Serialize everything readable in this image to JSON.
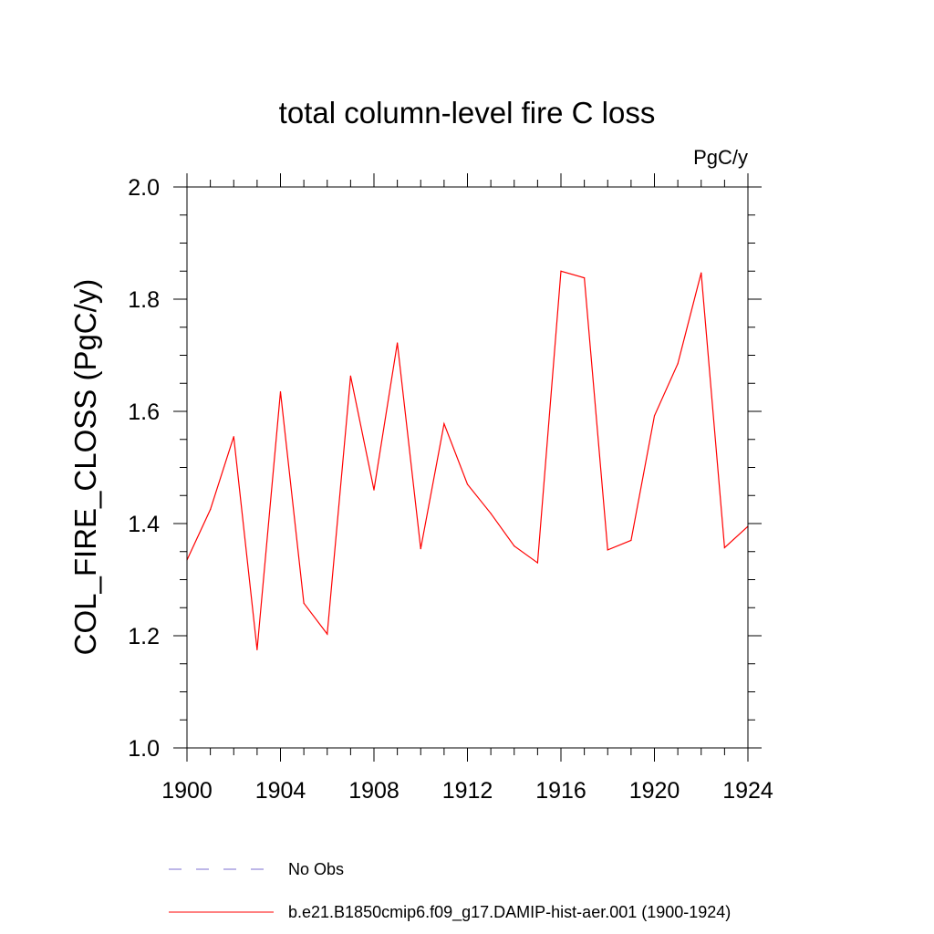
{
  "chart_data": {
    "type": "line",
    "title": "total column-level fire C loss",
    "units_label": "PgC/y",
    "ylabel": "COL_FIRE_CLOSS  (PgC/y)",
    "xlabel": "",
    "xlim": [
      1900,
      1924
    ],
    "ylim": [
      1.0,
      2.0
    ],
    "xticks": [
      1900,
      1904,
      1908,
      1912,
      1916,
      1920,
      1924
    ],
    "xtick_labels": [
      "1900",
      "1904",
      "1908",
      "1912",
      "1916",
      "1920",
      "1924"
    ],
    "yticks": [
      1.0,
      1.2,
      1.4,
      1.6,
      1.8,
      2.0
    ],
    "ytick_labels": [
      "1.0",
      "1.2",
      "1.4",
      "1.6",
      "1.8",
      "2.0"
    ],
    "grid": false,
    "legend_position": "bottom",
    "series": [
      {
        "name": "b.e21.B1850cmip6.f09_g17.DAMIP-hist-aer.001 (1900-1924)",
        "color": "#ff0000",
        "style": "solid",
        "x": [
          1900,
          1901,
          1902,
          1903,
          1904,
          1905,
          1906,
          1907,
          1908,
          1909,
          1910,
          1911,
          1912,
          1913,
          1914,
          1915,
          1916,
          1917,
          1918,
          1919,
          1920,
          1921,
          1922,
          1923,
          1924
        ],
        "y": [
          1.335,
          1.425,
          1.555,
          1.175,
          1.635,
          1.258,
          1.203,
          1.663,
          1.46,
          1.722,
          1.355,
          1.578,
          1.47,
          1.418,
          1.36,
          1.33,
          1.85,
          1.838,
          1.353,
          1.37,
          1.592,
          1.685,
          1.847,
          1.357,
          1.395
        ]
      }
    ],
    "legend": [
      {
        "label": "No Obs",
        "color": "#7b6fd0",
        "style": "dashed"
      },
      {
        "label": "b.e21.B1850cmip6.f09_g17.DAMIP-hist-aer.001 (1900-1924)",
        "color": "#ff0000",
        "style": "solid"
      }
    ]
  }
}
